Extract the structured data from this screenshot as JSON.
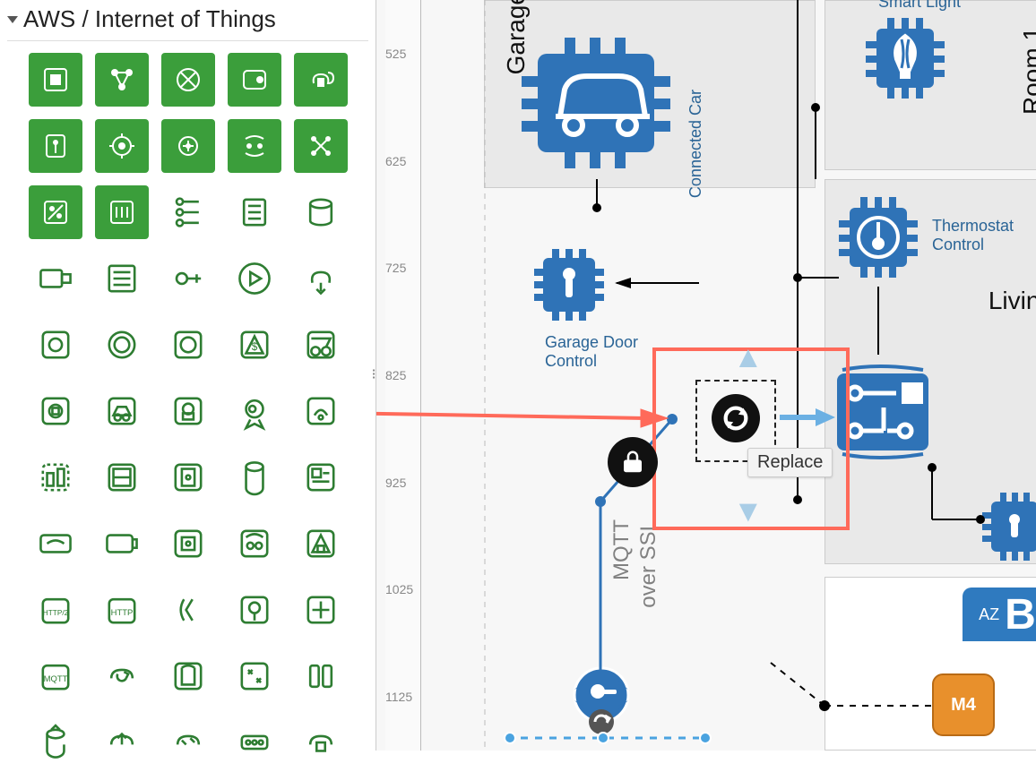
{
  "palette": {
    "title": "AWS / Internet of Things",
    "icon_filled_color": "#3b9e3b",
    "icon_outline_color": "#2e7d32",
    "filled_count": 12,
    "outline_count": 48
  },
  "ruler_ticks": [
    525,
    625,
    725,
    825,
    925,
    1025,
    1125
  ],
  "diagram": {
    "background": "#f7f7f7",
    "container_region_color": "#e9e9e9",
    "region_labels": {
      "garage": "Garage",
      "room1": "Room 1",
      "living": "Living"
    },
    "nodes": {
      "connected_car": {
        "label": "Connected\nCar",
        "color": "#2f73b7",
        "label_color": "#2f73b7"
      },
      "smart_light": {
        "label": "Smart Light",
        "color": "#2f73b7",
        "label_color": "#2f73b7"
      },
      "thermostat": {
        "label": "Thermostat\nControl",
        "color": "#2f73b7",
        "label_color": "#2f73b7"
      },
      "garage_door": {
        "label": "Garage Door\nControl",
        "color": "#2f73b7",
        "label_color": "#2f73b7"
      },
      "circuit": {
        "color": "#2f73b7"
      },
      "lock_small": {
        "color": "#2f73b7"
      }
    },
    "selection": {
      "border_color": "#ff6a5a",
      "tooltip": "Replace",
      "action_icon": "refresh"
    },
    "drag_guide": {
      "from_palette_row": 4,
      "from_palette_col": 4,
      "arrow_color": "#ff6a5a"
    },
    "protocol_label": {
      "line1": "MQTT",
      "line2": "over SSL",
      "color": "#818181"
    },
    "az_badge": {
      "small": "AZ",
      "big": "B",
      "bg": "#2f7abf"
    },
    "compute": {
      "label": "M4",
      "bg": "#e8902c"
    },
    "cert_badge": {
      "color": "#2f73b7"
    }
  }
}
